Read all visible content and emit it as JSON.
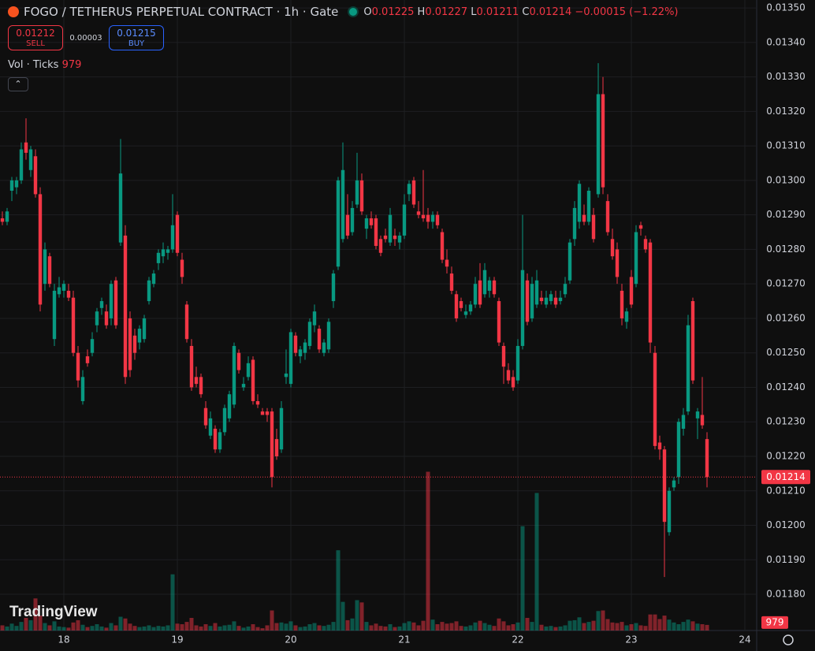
{
  "chart_data": {
    "type": "candlestick",
    "title": "FOGO / TETHERUS PERPETUAL CONTRACT · 1h · Gate",
    "legend_labels": [
      "O",
      "H",
      "L",
      "C"
    ],
    "change": "−0.00015 (−1.22%)",
    "sell_price": 0.01212,
    "sell_label": "SELL",
    "spread": 3e-05,
    "buy_price": 0.01215,
    "buy_label": "BUY",
    "volume_title": "Vol · Ticks",
    "watermark": "TradingView",
    "up_color": "#089981",
    "down_color": "#f23645",
    "grid": true,
    "ylim": [
      0.011695,
      0.013523
    ],
    "yticks": [
      {
        "value": 0.0118,
        "label": "0.01180"
      },
      {
        "value": 0.0119,
        "label": "0.01190"
      },
      {
        "value": 0.012,
        "label": "0.01200"
      },
      {
        "value": 0.0121,
        "label": "0.01210"
      },
      {
        "value": 0.0122,
        "label": "0.01220"
      },
      {
        "value": 0.0123,
        "label": "0.01230"
      },
      {
        "value": 0.0124,
        "label": "0.01240"
      },
      {
        "value": 0.0125,
        "label": "0.01250"
      },
      {
        "value": 0.0126,
        "label": "0.01260"
      },
      {
        "value": 0.0127,
        "label": "0.01270"
      },
      {
        "value": 0.0128,
        "label": "0.01280"
      },
      {
        "value": 0.0129,
        "label": "0.01290"
      },
      {
        "value": 0.013,
        "label": "0.01300"
      },
      {
        "value": 0.0131,
        "label": "0.01310"
      },
      {
        "value": 0.0132,
        "label": "0.01320"
      },
      {
        "value": 0.0133,
        "label": "0.01330"
      },
      {
        "value": 0.0134,
        "label": "0.01340"
      },
      {
        "value": 0.0135,
        "label": "0.01350"
      }
    ],
    "vlim": [
      0,
      110000
    ],
    "categories": [
      null,
      null,
      null,
      null,
      null,
      null,
      null,
      null,
      null,
      null,
      null,
      null,
      null,
      "18",
      null,
      null,
      null,
      null,
      null,
      null,
      null,
      null,
      null,
      null,
      null,
      null,
      null,
      null,
      null,
      null,
      null,
      null,
      null,
      null,
      null,
      null,
      null,
      "19",
      null,
      null,
      null,
      null,
      null,
      null,
      null,
      null,
      null,
      null,
      null,
      null,
      null,
      null,
      null,
      null,
      null,
      null,
      null,
      null,
      null,
      null,
      null,
      "20",
      null,
      null,
      null,
      null,
      null,
      null,
      null,
      null,
      null,
      null,
      null,
      null,
      null,
      null,
      null,
      null,
      null,
      null,
      null,
      null,
      null,
      null,
      null,
      "21",
      null,
      null,
      null,
      null,
      null,
      null,
      null,
      null,
      null,
      null,
      null,
      null,
      null,
      null,
      null,
      null,
      null,
      null,
      null,
      null,
      null,
      null,
      null,
      "22",
      null,
      null,
      null,
      null,
      null,
      null,
      null,
      null,
      null,
      null,
      null,
      null,
      null,
      null,
      null,
      null,
      null,
      null,
      null,
      null,
      null,
      null,
      null,
      "23",
      null,
      null,
      null,
      null,
      null,
      null,
      null,
      null,
      null,
      null,
      null,
      null,
      null,
      null,
      null,
      null,
      null,
      null,
      null,
      null,
      null,
      null,
      null,
      "24"
    ],
    "candles": [
      [
        0.01289,
        0.01291,
        0.01287,
        0.01288
      ],
      [
        0.01288,
        0.01292,
        0.01287,
        0.01291
      ],
      [
        0.01297,
        0.01301,
        0.01294,
        0.013
      ],
      [
        0.01298,
        0.01301,
        0.01296,
        0.013
      ],
      [
        0.013,
        0.01311,
        0.01299,
        0.01309
      ],
      [
        0.01311,
        0.01318,
        0.01306,
        0.01308
      ],
      [
        0.01303,
        0.0131,
        0.01301,
        0.01309
      ],
      [
        0.01307,
        0.01309,
        0.01295,
        0.01296
      ],
      [
        0.01296,
        0.01298,
        0.01262,
        0.01264
      ],
      [
        0.0127,
        0.01282,
        0.01268,
        0.0128
      ],
      [
        0.01278,
        0.01279,
        0.01269,
        0.0127
      ],
      [
        0.01254,
        0.0127,
        0.01252,
        0.01268
      ],
      [
        0.01267,
        0.01272,
        0.01266,
        0.01269
      ],
      [
        0.01268,
        0.01271,
        0.01266,
        0.0127
      ],
      [
        0.01268,
        0.0127,
        0.01265,
        0.01266
      ],
      [
        0.01266,
        0.01268,
        0.01249,
        0.0125
      ],
      [
        0.0125,
        0.01252,
        0.0124,
        0.01242
      ],
      [
        0.01236,
        0.01245,
        0.01235,
        0.01243
      ],
      [
        0.01249,
        0.01251,
        0.01246,
        0.01247
      ],
      [
        0.0125,
        0.01256,
        0.01249,
        0.01254
      ],
      [
        0.01258,
        0.01263,
        0.01256,
        0.01262
      ],
      [
        0.01263,
        0.01266,
        0.01261,
        0.01265
      ],
      [
        0.01262,
        0.01264,
        0.01257,
        0.01258
      ],
      [
        0.0126,
        0.01271,
        0.01258,
        0.0127
      ],
      [
        0.01271,
        0.01272,
        0.01257,
        0.01258
      ],
      [
        0.01282,
        0.01312,
        0.01281,
        0.01302
      ],
      [
        0.01284,
        0.01287,
        0.01241,
        0.01243
      ],
      [
        0.0126,
        0.01262,
        0.01243,
        0.01245
      ],
      [
        0.01255,
        0.01257,
        0.01248,
        0.0125
      ],
      [
        0.01253,
        0.01258,
        0.01251,
        0.01257
      ],
      [
        0.01254,
        0.01261,
        0.01253,
        0.0126
      ],
      [
        0.01265,
        0.01272,
        0.01264,
        0.01271
      ],
      [
        0.0127,
        0.01274,
        0.01269,
        0.01273
      ],
      [
        0.01276,
        0.0128,
        0.01274,
        0.01279
      ],
      [
        0.01278,
        0.01282,
        0.01276,
        0.0128
      ],
      [
        0.01279,
        0.01281,
        0.01277,
        0.0128
      ],
      [
        0.0128,
        0.01296,
        0.01279,
        0.01287
      ],
      [
        0.0129,
        0.01291,
        0.01278,
        0.01279
      ],
      [
        0.01277,
        0.01279,
        0.0127,
        0.01272
      ],
      [
        0.01264,
        0.01265,
        0.01253,
        0.01254
      ],
      [
        0.01252,
        0.01254,
        0.01239,
        0.0124
      ],
      [
        0.01243,
        0.01246,
        0.0124,
        0.01241
      ],
      [
        0.01243,
        0.01244,
        0.01237,
        0.01238
      ],
      [
        0.01234,
        0.01236,
        0.01228,
        0.01229
      ],
      [
        0.01226,
        0.01233,
        0.01225,
        0.01231
      ],
      [
        0.01228,
        0.01229,
        0.01221,
        0.01222
      ],
      [
        0.01222,
        0.01228,
        0.01221,
        0.01227
      ],
      [
        0.01227,
        0.01235,
        0.01226,
        0.01234
      ],
      [
        0.01231,
        0.01239,
        0.0123,
        0.01238
      ],
      [
        0.01235,
        0.01253,
        0.01234,
        0.01252
      ],
      [
        0.0125,
        0.01251,
        0.01244,
        0.01245
      ],
      [
        0.0124,
        0.01243,
        0.01239,
        0.01241
      ],
      [
        0.01243,
        0.01249,
        0.01242,
        0.01247
      ],
      [
        0.01248,
        0.01249,
        0.01235,
        0.01236
      ],
      [
        0.01236,
        0.01238,
        0.01234,
        0.01235
      ],
      [
        0.01233,
        0.01234,
        0.01232,
        0.01232
      ],
      [
        0.01233,
        0.01234,
        0.0123,
        0.01232
      ],
      [
        0.01233,
        0.01234,
        0.01211,
        0.01214
      ],
      [
        0.01225,
        0.01228,
        0.01219,
        0.0122
      ],
      [
        0.01222,
        0.01236,
        0.01221,
        0.01234
      ],
      [
        0.01243,
        0.01251,
        0.01241,
        0.01244
      ],
      [
        0.01241,
        0.01257,
        0.0124,
        0.01256
      ],
      [
        0.01255,
        0.01256,
        0.01249,
        0.0125
      ],
      [
        0.01249,
        0.01252,
        0.01247,
        0.01251
      ],
      [
        0.0125,
        0.01254,
        0.01248,
        0.01253
      ],
      [
        0.01252,
        0.0126,
        0.01251,
        0.01259
      ],
      [
        0.01258,
        0.01264,
        0.01256,
        0.01262
      ],
      [
        0.01257,
        0.01258,
        0.0125,
        0.01251
      ],
      [
        0.0125,
        0.01254,
        0.01249,
        0.01253
      ],
      [
        0.01251,
        0.0126,
        0.0125,
        0.01259
      ],
      [
        0.01265,
        0.01274,
        0.01263,
        0.01273
      ],
      [
        0.01275,
        0.01301,
        0.01274,
        0.013
      ],
      [
        0.01283,
        0.01311,
        0.01282,
        0.01303
      ],
      [
        0.0129,
        0.01296,
        0.01283,
        0.01284
      ],
      [
        0.01285,
        0.01294,
        0.01284,
        0.01292
      ],
      [
        0.01293,
        0.01308,
        0.01292,
        0.013
      ],
      [
        0.013,
        0.01302,
        0.0129,
        0.01291
      ],
      [
        0.01286,
        0.0129,
        0.01283,
        0.01289
      ],
      [
        0.01289,
        0.01291,
        0.01286,
        0.01287
      ],
      [
        0.01289,
        0.0129,
        0.0128,
        0.01281
      ],
      [
        0.01283,
        0.01284,
        0.01278,
        0.01279
      ],
      [
        0.01284,
        0.01286,
        0.01282,
        0.01283
      ],
      [
        0.01282,
        0.01292,
        0.01281,
        0.0129
      ],
      [
        0.01284,
        0.01286,
        0.01281,
        0.01283
      ],
      [
        0.01282,
        0.01285,
        0.0128,
        0.01284
      ],
      [
        0.01284,
        0.01296,
        0.01283,
        0.01293
      ],
      [
        0.01296,
        0.013,
        0.01294,
        0.01299
      ],
      [
        0.013,
        0.01301,
        0.01292,
        0.01293
      ],
      [
        0.01291,
        0.01294,
        0.01289,
        0.0129
      ],
      [
        0.0129,
        0.01303,
        0.01288,
        0.01289
      ],
      [
        0.0129,
        0.01292,
        0.01286,
        0.01288
      ],
      [
        0.01288,
        0.01291,
        0.01286,
        0.0129
      ],
      [
        0.0129,
        0.01291,
        0.01286,
        0.01287
      ],
      [
        0.01285,
        0.01286,
        0.01276,
        0.01277
      ],
      [
        0.01277,
        0.0128,
        0.01273,
        0.01275
      ],
      [
        0.01273,
        0.01275,
        0.01267,
        0.01268
      ],
      [
        0.01267,
        0.01268,
        0.01259,
        0.0126
      ],
      [
        0.01265,
        0.01266,
        0.01262,
        0.01263
      ],
      [
        0.01261,
        0.01264,
        0.0126,
        0.01262
      ],
      [
        0.01262,
        0.01265,
        0.01261,
        0.01264
      ],
      [
        0.01264,
        0.01272,
        0.01263,
        0.0127
      ],
      [
        0.01271,
        0.01276,
        0.01263,
        0.01264
      ],
      [
        0.01267,
        0.01276,
        0.01266,
        0.01274
      ],
      [
        0.01268,
        0.01272,
        0.01266,
        0.01271
      ],
      [
        0.01271,
        0.01272,
        0.01266,
        0.01267
      ],
      [
        0.01265,
        0.01266,
        0.01252,
        0.01253
      ],
      [
        0.01252,
        0.01253,
        0.01241,
        0.01246
      ],
      [
        0.01245,
        0.01247,
        0.01241,
        0.01242
      ],
      [
        0.01243,
        0.01245,
        0.01239,
        0.0124
      ],
      [
        0.01242,
        0.01254,
        0.01241,
        0.01252
      ],
      [
        0.01252,
        0.0129,
        0.01251,
        0.01274
      ],
      [
        0.01271,
        0.01273,
        0.01258,
        0.01259
      ],
      [
        0.0126,
        0.01272,
        0.01259,
        0.0127
      ],
      [
        0.01264,
        0.01274,
        0.01263,
        0.01271
      ],
      [
        0.01266,
        0.01268,
        0.01264,
        0.01265
      ],
      [
        0.01264,
        0.01268,
        0.01263,
        0.01266
      ],
      [
        0.01265,
        0.01268,
        0.01264,
        0.01267
      ],
      [
        0.01266,
        0.01268,
        0.01263,
        0.01264
      ],
      [
        0.01265,
        0.01268,
        0.01264,
        0.01266
      ],
      [
        0.01267,
        0.01272,
        0.01266,
        0.0127
      ],
      [
        0.01271,
        0.01283,
        0.0127,
        0.01282
      ],
      [
        0.01283,
        0.01294,
        0.01281,
        0.01292
      ],
      [
        0.01288,
        0.013,
        0.01286,
        0.01299
      ],
      [
        0.0129,
        0.01293,
        0.01287,
        0.01288
      ],
      [
        0.01288,
        0.01298,
        0.01287,
        0.01297
      ],
      [
        0.0129,
        0.01292,
        0.01282,
        0.01283
      ],
      [
        0.01296,
        0.01334,
        0.01295,
        0.01325
      ],
      [
        0.01325,
        0.0133,
        0.01296,
        0.01298
      ],
      [
        0.01294,
        0.01296,
        0.01284,
        0.01285
      ],
      [
        0.01283,
        0.01286,
        0.01277,
        0.01278
      ],
      [
        0.0128,
        0.01282,
        0.0127,
        0.01272
      ],
      [
        0.01268,
        0.0127,
        0.01258,
        0.0126
      ],
      [
        0.01259,
        0.01263,
        0.01257,
        0.01262
      ],
      [
        0.01272,
        0.01274,
        0.01263,
        0.01264
      ],
      [
        0.0127,
        0.01287,
        0.01269,
        0.01285
      ],
      [
        0.01287,
        0.01288,
        0.01284,
        0.01286
      ],
      [
        0.01283,
        0.01284,
        0.01279,
        0.0128
      ],
      [
        0.01282,
        0.01283,
        0.0125,
        0.01253
      ],
      [
        0.0125,
        0.01252,
        0.01222,
        0.01223
      ],
      [
        0.01224,
        0.01226,
        0.01219,
        0.01222
      ],
      [
        0.01222,
        0.01223,
        0.01185,
        0.01201
      ],
      [
        0.01198,
        0.01211,
        0.01197,
        0.0121
      ],
      [
        0.01211,
        0.01214,
        0.0121,
        0.01213
      ],
      [
        0.01214,
        0.01231,
        0.01212,
        0.0123
      ],
      [
        0.01228,
        0.01234,
        0.01226,
        0.01232
      ],
      [
        0.01233,
        0.01261,
        0.01232,
        0.01258
      ],
      [
        0.01265,
        0.01266,
        0.01241,
        0.01242
      ],
      [
        0.01231,
        0.01234,
        0.01225,
        0.01233
      ],
      [
        0.01232,
        0.01243,
        0.01228,
        0.01229
      ],
      [
        0.01225,
        0.01227,
        0.01211,
        0.01214
      ],
      null,
      null,
      null,
      null,
      null,
      null,
      null,
      null
    ],
    "volumes": [
      900,
      700,
      1200,
      800,
      1500,
      2200,
      1800,
      5600,
      2600,
      1300,
      900,
      1600,
      700,
      600,
      500,
      1400,
      1800,
      1000,
      600,
      800,
      1100,
      700,
      500,
      1300,
      900,
      2400,
      2100,
      1200,
      800,
      600,
      700,
      900,
      600,
      800,
      700,
      900,
      9800,
      1200,
      1100,
      1500,
      2200,
      900,
      700,
      1100,
      800,
      1300,
      700,
      900,
      1000,
      1600,
      800,
      500,
      700,
      1100,
      600,
      400,
      900,
      3500,
      1300,
      1400,
      1200,
      1600,
      900,
      600,
      700,
      1100,
      1300,
      900,
      800,
      1000,
      1500,
      14000,
      5000,
      1800,
      2100,
      5300,
      4900,
      1500,
      900,
      1200,
      800,
      700,
      1100,
      600,
      700,
      1300,
      1600,
      1400,
      900,
      1700,
      27700,
      1900,
      1100,
      1500,
      1200,
      1300,
      1600,
      800,
      700,
      900,
      1400,
      1700,
      1300,
      1000,
      800,
      2100,
      1600,
      900,
      1100,
      1400,
      18200,
      2200,
      1500,
      24000,
      1000,
      700,
      800,
      600,
      700,
      900,
      1700,
      1800,
      2300,
      1300,
      1500,
      1700,
      3400,
      3500,
      2000,
      1400,
      1300,
      1500,
      900,
      1100,
      1300,
      900,
      800,
      2800,
      2800,
      2000,
      2600,
      1900,
      1400,
      1100,
      1500,
      1900,
      1600,
      1200,
      1100,
      979,
      null,
      null,
      null,
      null,
      null,
      null,
      null,
      null
    ]
  }
}
